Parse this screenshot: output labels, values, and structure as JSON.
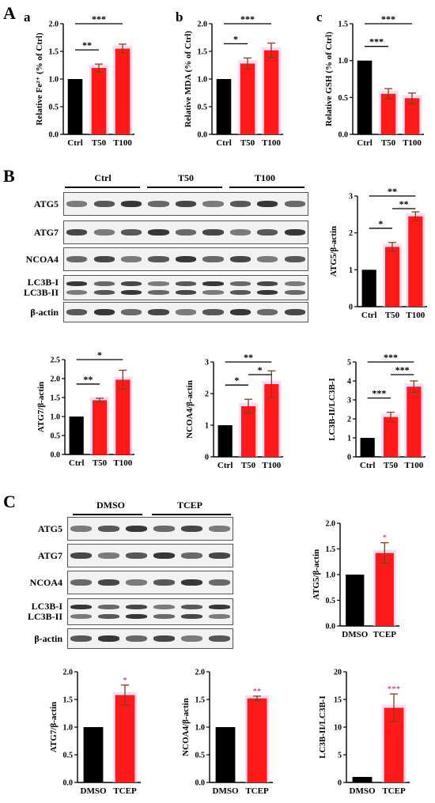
{
  "labels": {
    "A": "A",
    "a": "a",
    "b": "b",
    "c": "c",
    "B": "B",
    "C": "C"
  },
  "colors": {
    "control": "#000000",
    "treat": "#ff1a1a",
    "halo": "#ffc0e6",
    "err": "#8a3a1a"
  },
  "blots": {
    "B": {
      "groups": [
        "Ctrl",
        "T50",
        "T100"
      ],
      "rows": [
        "ATG5",
        "ATG7",
        "NCOA4",
        "LC3B-I\nLC3B-II",
        "β-actin"
      ]
    },
    "C": {
      "groups": [
        "DMSO",
        "TCEP"
      ],
      "rows": [
        "ATG5",
        "ATG7",
        "NCOA4",
        "LC3B-I\nLC3B-II",
        "β-actin"
      ]
    }
  },
  "chart_data": [
    {
      "id": "Aa",
      "type": "bar",
      "categories": [
        "Ctrl",
        "T50",
        "T100"
      ],
      "values": [
        1.0,
        1.2,
        1.55
      ],
      "errors": [
        0,
        0.07,
        0.08
      ],
      "ylabel": "Relative Fe²⁺ (% of Ctrl)",
      "ylim": [
        0,
        2.0
      ],
      "yticks": [
        "0.0",
        "0.5",
        "1.0",
        "1.5",
        "2.0"
      ],
      "sig": [
        {
          "from": 0,
          "to": 1,
          "label": "**"
        },
        {
          "from": 0,
          "to": 2,
          "label": "***"
        }
      ]
    },
    {
      "id": "Ab",
      "type": "bar",
      "categories": [
        "Ctrl",
        "T50",
        "T100"
      ],
      "values": [
        1.0,
        1.28,
        1.52
      ],
      "errors": [
        0,
        0.1,
        0.13
      ],
      "ylabel": "Relative MDA (% of Ctrl)",
      "ylim": [
        0,
        2.0
      ],
      "yticks": [
        "0.0",
        "0.5",
        "1.0",
        "1.5",
        "2.0"
      ],
      "sig": [
        {
          "from": 0,
          "to": 1,
          "label": "*"
        },
        {
          "from": 0,
          "to": 2,
          "label": "***"
        }
      ]
    },
    {
      "id": "Ac",
      "type": "bar",
      "categories": [
        "Ctrl",
        "T50",
        "T100"
      ],
      "values": [
        1.0,
        0.55,
        0.49
      ],
      "errors": [
        0,
        0.07,
        0.07
      ],
      "ylabel": "Relative GSH (% of Ctrl)",
      "ylim": [
        0,
        1.5
      ],
      "yticks": [
        "0.0",
        "0.5",
        "1.0",
        "1.5"
      ],
      "sig": [
        {
          "from": 0,
          "to": 1,
          "label": "***"
        },
        {
          "from": 0,
          "to": 2,
          "label": "***"
        }
      ]
    },
    {
      "id": "B_ATG5",
      "type": "bar",
      "categories": [
        "Ctrl",
        "T50",
        "T100"
      ],
      "values": [
        1.0,
        1.62,
        2.45
      ],
      "errors": [
        0,
        0.12,
        0.12
      ],
      "ylabel": "ATG5/β-actin",
      "ylim": [
        0,
        3
      ],
      "yticks": [
        "0",
        "1",
        "2",
        "3"
      ],
      "sig": [
        {
          "from": 0,
          "to": 1,
          "label": "*"
        },
        {
          "from": 1,
          "to": 2,
          "label": "**"
        },
        {
          "from": 0,
          "to": 2,
          "label": "**"
        }
      ]
    },
    {
      "id": "B_ATG7",
      "type": "bar",
      "categories": [
        "Ctrl",
        "T50",
        "T100"
      ],
      "values": [
        1.0,
        1.43,
        1.97
      ],
      "errors": [
        0,
        0.05,
        0.25
      ],
      "ylabel": "ATG7/β-actin",
      "ylim": [
        0,
        2.5
      ],
      "yticks": [
        "0.0",
        "0.5",
        "1.0",
        "1.5",
        "2.0",
        "2.5"
      ],
      "sig": [
        {
          "from": 0,
          "to": 1,
          "label": "**"
        },
        {
          "from": 0,
          "to": 2,
          "label": "*"
        }
      ]
    },
    {
      "id": "B_NCOA4",
      "type": "bar",
      "categories": [
        "Ctrl",
        "T50",
        "T100"
      ],
      "values": [
        1.0,
        1.6,
        2.3
      ],
      "errors": [
        0,
        0.22,
        0.42
      ],
      "ylabel": "NCOA4/β-actin",
      "ylim": [
        0,
        3
      ],
      "yticks": [
        "0",
        "1",
        "2",
        "3"
      ],
      "sig": [
        {
          "from": 0,
          "to": 1,
          "label": "*"
        },
        {
          "from": 1,
          "to": 2,
          "label": "*"
        },
        {
          "from": 0,
          "to": 2,
          "label": "**"
        }
      ]
    },
    {
      "id": "B_LC3",
      "type": "bar",
      "categories": [
        "Ctrl",
        "T50",
        "T100"
      ],
      "values": [
        1.0,
        2.1,
        3.7
      ],
      "errors": [
        0,
        0.25,
        0.3
      ],
      "ylabel": "LC3B-II/LC3B-I",
      "ylim": [
        0,
        5
      ],
      "yticks": [
        "0",
        "1",
        "2",
        "3",
        "4",
        "5"
      ],
      "sig": [
        {
          "from": 0,
          "to": 1,
          "label": "***"
        },
        {
          "from": 1,
          "to": 2,
          "label": "***"
        },
        {
          "from": 0,
          "to": 2,
          "label": "***"
        }
      ]
    },
    {
      "id": "C_ATG5",
      "type": "bar",
      "categories": [
        "DMSO",
        "TCEP"
      ],
      "values": [
        1.0,
        1.42
      ],
      "errors": [
        0,
        0.2
      ],
      "ylabel": "ATG5/β-actin",
      "ylim": [
        0,
        2.0
      ],
      "yticks": [
        "0.0",
        "0.5",
        "1.0",
        "1.5",
        "2.0"
      ],
      "stars": [
        "",
        "*"
      ]
    },
    {
      "id": "C_ATG7",
      "type": "bar",
      "categories": [
        "DMSO",
        "TCEP"
      ],
      "values": [
        1.0,
        1.58
      ],
      "errors": [
        0,
        0.18
      ],
      "ylabel": "ATG7/β-actin",
      "ylim": [
        0,
        2.0
      ],
      "yticks": [
        "0.0",
        "0.5",
        "1.0",
        "1.5",
        "2.0"
      ],
      "stars": [
        "",
        "*"
      ]
    },
    {
      "id": "C_NCOA4",
      "type": "bar",
      "categories": [
        "DMSO",
        "TCEP"
      ],
      "values": [
        1.0,
        1.52
      ],
      "errors": [
        0,
        0.04
      ],
      "ylabel": "NCOA4/β-actin",
      "ylim": [
        0,
        2.0
      ],
      "yticks": [
        "0.0",
        "0.5",
        "1.0",
        "1.5",
        "2.0"
      ],
      "stars": [
        "",
        "**"
      ]
    },
    {
      "id": "C_LC3",
      "type": "bar",
      "categories": [
        "DMSO",
        "TCEP"
      ],
      "values": [
        1.0,
        13.5
      ],
      "errors": [
        0,
        2.5
      ],
      "ylabel": "LC3B-II/LC3B-I",
      "ylim": [
        0,
        20
      ],
      "yticks": [
        "0",
        "5",
        "10",
        "15",
        "20"
      ],
      "stars": [
        "",
        "***"
      ]
    }
  ]
}
